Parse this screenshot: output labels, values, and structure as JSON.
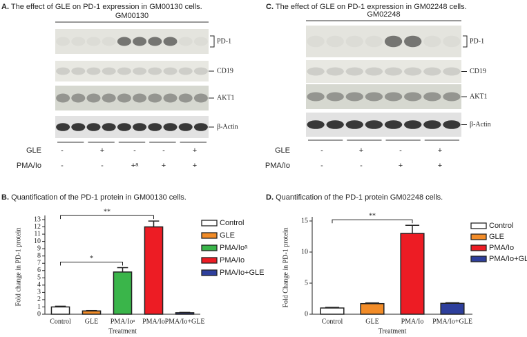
{
  "blots": [
    {
      "label": "A.",
      "title": "The effect of GLE on PD-1 expression in GM00130 cells.",
      "cell_line": "GM00130",
      "bands": [
        "PD-1",
        "CD19",
        "AKT1",
        "β-Actin"
      ],
      "rows": [
        {
          "name": "GLE",
          "signs": [
            "-",
            "+",
            "-",
            "-",
            "+"
          ]
        },
        {
          "name": "PMA/Io",
          "signs": [
            "-",
            "-",
            "+ᵃ",
            "+",
            "+"
          ]
        }
      ]
    },
    {
      "label": "C.",
      "title": "The effect of GLE on PD-1 expression in GM02248 cells.",
      "cell_line": "GM02248",
      "bands": [
        "PD-1",
        "CD19",
        "AKT1",
        "β-Actin"
      ],
      "rows": [
        {
          "name": "GLE",
          "signs": [
            "-",
            "+",
            "-",
            "+"
          ]
        },
        {
          "name": "PMA/Io",
          "signs": [
            "-",
            "-",
            "+",
            "+"
          ]
        }
      ]
    }
  ],
  "chart_data": [
    {
      "type": "bar",
      "label": "B.",
      "title": "Quantification of the PD-1 protein in GM00130 cells.",
      "y_label": "Fold change in PD-1 protein",
      "x_label": "Treatment",
      "categories": [
        "Control",
        "GLE",
        "PMA/Ioᵃ",
        "PMA/Io",
        "PMA/Io+GLE"
      ],
      "values": [
        1.0,
        0.45,
        5.8,
        12.0,
        0.2
      ],
      "errors": [
        0.1,
        0.05,
        0.6,
        0.8,
        0.05
      ],
      "colors": [
        "#ffffff",
        "#f28c28",
        "#3ab54a",
        "#ed1c24",
        "#2e3f9c"
      ],
      "ylim": [
        0,
        13
      ],
      "yticks": [
        0,
        1,
        2,
        3,
        4,
        5,
        6,
        7,
        8,
        9,
        10,
        11,
        12,
        13
      ],
      "significance": [
        {
          "text": "**",
          "pair": [
            0,
            3
          ]
        },
        {
          "text": "*",
          "pair": [
            0,
            2
          ]
        }
      ]
    },
    {
      "type": "bar",
      "label": "D.",
      "title": "Quantification of the PD-1 protein GM02248 cells.",
      "y_label": "Fold Change in PD-1 protein",
      "x_label": "Treatment",
      "categories": [
        "Control",
        "GLE",
        "PMA/Io",
        "PMA/Io+GLE"
      ],
      "values": [
        1.0,
        1.7,
        13.0,
        1.75
      ],
      "errors": [
        0.1,
        0.12,
        1.3,
        0.1
      ],
      "colors": [
        "#ffffff",
        "#f28c28",
        "#ed1c24",
        "#2e3f9c"
      ],
      "ylim": [
        0,
        15
      ],
      "yticks": [
        0,
        5,
        10,
        15
      ],
      "significance": [
        {
          "text": "**",
          "pair": [
            0,
            2
          ]
        }
      ]
    }
  ]
}
